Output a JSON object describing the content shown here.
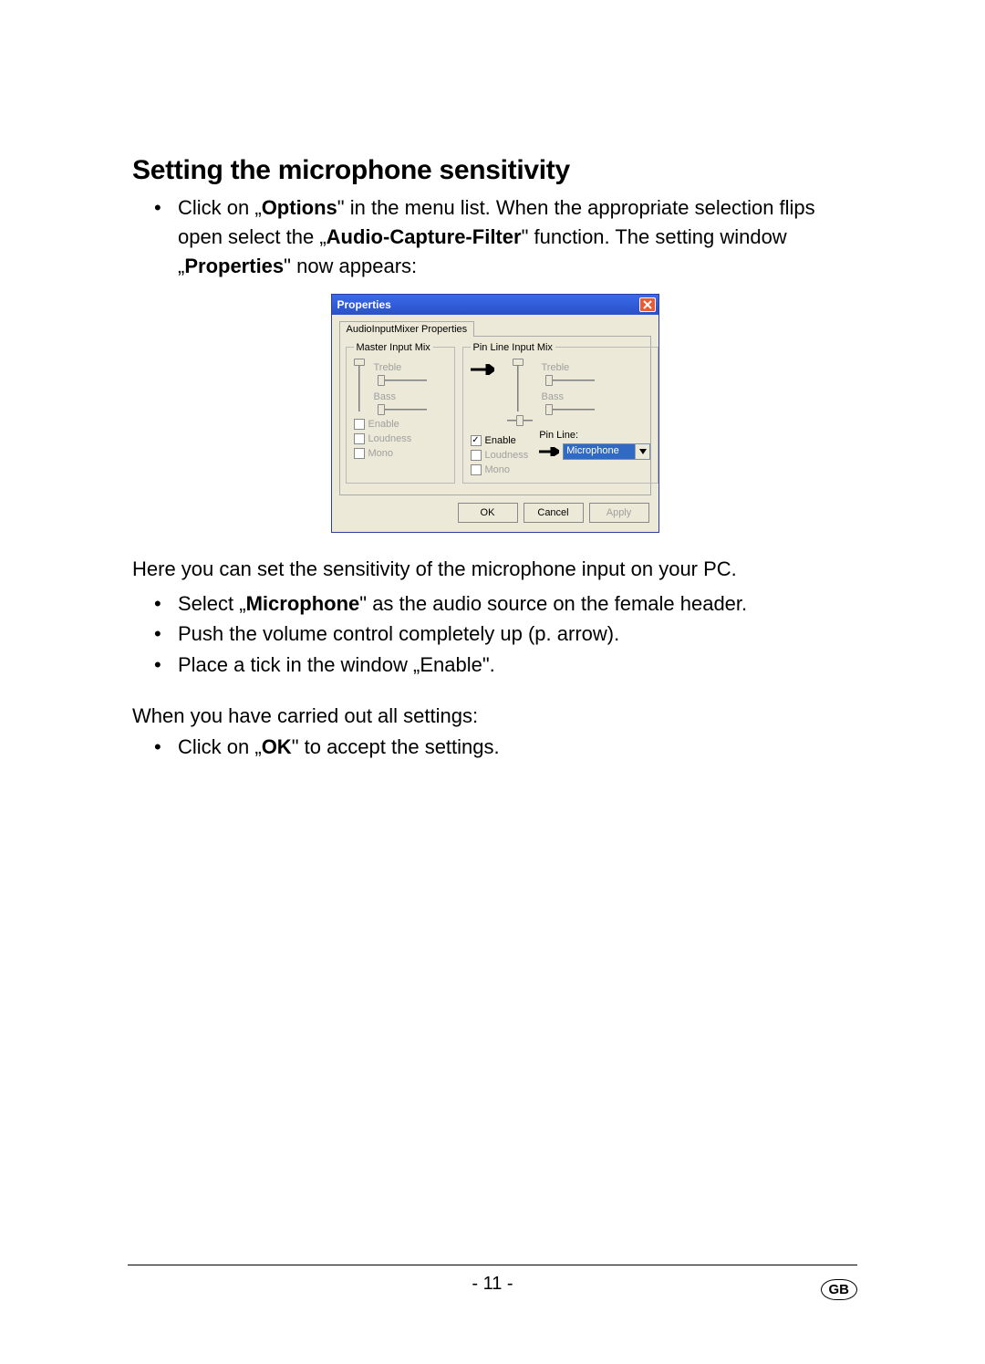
{
  "heading": "Setting the microphone sensitivity",
  "intro_list": [
    {
      "segments": [
        {
          "t": "Click on „",
          "b": false
        },
        {
          "t": "Options",
          "b": true
        },
        {
          "t": "\" in the menu list. When the appropriate selection flips open select the „",
          "b": false
        },
        {
          "t": "Audio-Capture-Filter",
          "b": true
        },
        {
          "t": "\" function. The setting window „",
          "b": false
        },
        {
          "t": "Properties",
          "b": true
        },
        {
          "t": "\" now appears:",
          "b": false
        }
      ]
    }
  ],
  "dialog": {
    "title": "Properties",
    "tab_label": "AudioInputMixer Properties",
    "master_group": {
      "legend": "Master Input Mix",
      "treble_label": "Treble",
      "bass_label": "Bass",
      "volume_pos": 0.0,
      "treble_pos": 0.0,
      "bass_pos": 0.0,
      "enable_label": "Enable",
      "enable_checked": false,
      "loudness_label": "Loudness",
      "loudness_checked": false,
      "mono_label": "Mono",
      "mono_checked": false,
      "disabled": true
    },
    "pinline_group": {
      "legend": "Pin Line Input Mix",
      "treble_label": "Treble",
      "bass_label": "Bass",
      "volume_pos": 0.0,
      "pan_pos": 0.5,
      "treble_pos": 0.0,
      "bass_pos": 0.0,
      "enable_label": "Enable",
      "enable_checked": true,
      "loudness_label": "Loudness",
      "loudness_checked": false,
      "mono_label": "Mono",
      "mono_checked": false,
      "loudness_mono_disabled": true,
      "pin_line_label": "Pin Line:",
      "pin_line_value": "Microphone"
    },
    "buttons": {
      "ok": "OK",
      "cancel": "Cancel",
      "apply": "Apply",
      "apply_disabled": true
    },
    "arrow_color": "#000000"
  },
  "after_dialog_para": "Here you can set the sensitivity of the microphone input on your PC.",
  "steps_list": [
    {
      "segments": [
        {
          "t": "Select „",
          "b": false
        },
        {
          "t": "Microphone",
          "b": true
        },
        {
          "t": "\" as the audio source on the female header.",
          "b": false
        }
      ]
    },
    {
      "segments": [
        {
          "t": "Push the volume control completely up (p. arrow).",
          "b": false
        }
      ]
    },
    {
      "segments": [
        {
          "t": "Place a tick in the window „Enable\".",
          "b": false
        }
      ]
    }
  ],
  "closing_para": "When you have carried out all settings:",
  "closing_list": [
    {
      "segments": [
        {
          "t": "Click on „",
          "b": false
        },
        {
          "t": "OK",
          "b": true
        },
        {
          "t": "\" to accept the settings.",
          "b": false
        }
      ]
    }
  ],
  "page_number": "- 11 -",
  "region_badge": "GB"
}
